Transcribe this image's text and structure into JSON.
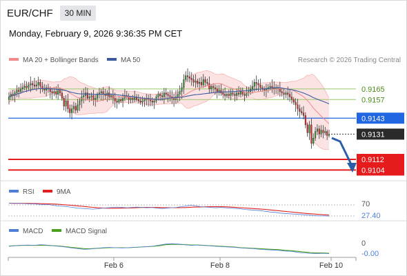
{
  "header": {
    "symbol": "EUR/CHF",
    "timeframe": "30 MIN"
  },
  "datetime": "Monday, February 9, 2026 9:36:35 PM CET",
  "legend": {
    "bollinger": "MA 20 + Bollinger Bands",
    "ma50": "MA 50",
    "credit": "Research © 2026 Trading Central"
  },
  "colors": {
    "up": "#2e9e3a",
    "down": "#d62c2c",
    "bollinger": "#f08a8a",
    "ma50": "#3b5b9c",
    "pivot": "#1f66e0",
    "resistance": "#9cc86a",
    "support": "#e61c1c",
    "last_price_box": "#2a2a2a",
    "forecast_arrow": "#2b5ea6",
    "rsi": "#4f7ed6",
    "rsi_ma": "#e01f1f",
    "macd": "#4f7ed6",
    "macd_signal": "#4aa01e"
  },
  "chart_data": [
    {
      "type": "candlestick",
      "name": "price",
      "y_range": [
        0.9098,
        0.9181
      ],
      "levels": [
        {
          "value": 0.9165,
          "label": "0.9165",
          "kind": "resistance"
        },
        {
          "value": 0.9157,
          "label": "0.9157",
          "kind": "resistance"
        },
        {
          "value": 0.9143,
          "label": "0.9143",
          "kind": "pivot"
        },
        {
          "value": 0.9131,
          "label": "0.9131",
          "kind": "last"
        },
        {
          "value": 0.9112,
          "label": "0.9112",
          "kind": "support"
        },
        {
          "value": 0.9104,
          "label": "0.9104",
          "kind": "support"
        }
      ],
      "close": [
        0.9159,
        0.9161,
        0.916,
        0.9162,
        0.9164,
        0.9163,
        0.9165,
        0.9166,
        0.9167,
        0.9166,
        0.9168,
        0.9169,
        0.9168,
        0.9167,
        0.9168,
        0.917,
        0.9167,
        0.9165,
        0.9164,
        0.9166,
        0.9165,
        0.9163,
        0.9162,
        0.9163,
        0.9161,
        0.9164,
        0.9162,
        0.9158,
        0.9152,
        0.9156,
        0.915,
        0.9147,
        0.915,
        0.9152,
        0.9149,
        0.9153,
        0.9156,
        0.9159,
        0.916,
        0.9162,
        0.9158,
        0.9159,
        0.916,
        0.9157,
        0.9158,
        0.9161,
        0.9162,
        0.9163,
        0.9161,
        0.916,
        0.9162,
        0.9159,
        0.916,
        0.9158,
        0.9156,
        0.9155,
        0.9157,
        0.9156,
        0.9158,
        0.916,
        0.9159,
        0.9157,
        0.9158,
        0.9157,
        0.9159,
        0.9157,
        0.9156,
        0.9155,
        0.9156,
        0.9157,
        0.9158,
        0.9157,
        0.9156,
        0.9155,
        0.9156,
        0.9159,
        0.9161,
        0.916,
        0.9159,
        0.9162,
        0.9161,
        0.916,
        0.9159,
        0.9158,
        0.9157,
        0.9159,
        0.9161,
        0.9163,
        0.9166,
        0.9172,
        0.9175,
        0.9174,
        0.9173,
        0.9172,
        0.917,
        0.9171,
        0.9169,
        0.917,
        0.9168,
        0.9172,
        0.917,
        0.9169,
        0.9165,
        0.9167,
        0.9166,
        0.9165,
        0.9163,
        0.9164,
        0.9162,
        0.9161,
        0.916,
        0.9161,
        0.916,
        0.9162,
        0.9161,
        0.916,
        0.9162,
        0.9161,
        0.9163,
        0.9161,
        0.916,
        0.9162,
        0.9163,
        0.9165,
        0.9167,
        0.917,
        0.9169,
        0.9168,
        0.9166,
        0.9165,
        0.9164,
        0.9165,
        0.9166,
        0.9167,
        0.9166,
        0.9165,
        0.9166,
        0.9165,
        0.9163,
        0.9162,
        0.9161,
        0.9162,
        0.9161,
        0.9159,
        0.9157,
        0.9155,
        0.9153,
        0.915,
        0.9148,
        0.9147,
        0.9145,
        0.9138,
        0.9132,
        0.9138,
        0.9124,
        0.9128,
        0.9133,
        0.9135,
        0.9131,
        0.9134,
        0.9132,
        0.9133,
        0.913,
        0.9131
      ]
    },
    {
      "type": "line",
      "name": "RSI",
      "y_tick_labels": [
        "70",
        "27.40"
      ],
      "values": [
        64,
        63,
        64,
        63,
        62,
        62,
        61,
        60,
        60,
        58,
        56,
        55,
        54,
        52,
        50,
        49,
        48,
        47,
        48,
        50,
        51,
        52,
        53,
        52,
        51,
        52,
        53,
        52,
        51,
        52,
        50,
        49,
        50,
        51,
        52,
        54,
        56,
        58,
        56,
        54,
        53,
        52,
        51,
        52,
        51,
        50,
        49,
        48,
        46,
        45,
        44,
        43,
        41,
        39,
        38,
        36,
        35,
        34,
        33,
        32,
        31,
        30,
        29,
        28,
        28,
        27.4
      ]
    },
    {
      "type": "line",
      "name": "MACD",
      "y_tick_labels": [
        "0",
        "-0.00"
      ],
      "macd": [
        0.2,
        0.4,
        0.5,
        0.6,
        0.5,
        0.7,
        0.6,
        0.4,
        0.2,
        0.0,
        -0.3,
        -0.5,
        -0.7,
        -0.6,
        -0.4,
        -0.2,
        -0.1,
        -0.2,
        -0.3,
        -0.2,
        -0.1,
        0.0,
        0.1,
        0.3,
        0.6,
        0.9,
        1.0,
        0.9,
        0.7,
        0.5,
        0.6,
        0.5,
        0.4,
        0.2,
        0.1,
        0.0,
        -0.1,
        -0.3,
        -0.4,
        -0.5,
        -0.7,
        -0.8,
        -0.9,
        -1.0,
        -1.2,
        -1.3,
        -1.6,
        -1.8,
        -1.9,
        -2.0,
        -1.9,
        -2.0
      ],
      "signal": [
        0.3,
        0.4,
        0.5,
        0.5,
        0.5,
        0.5,
        0.5,
        0.4,
        0.3,
        0.1,
        -0.1,
        -0.3,
        -0.5,
        -0.5,
        -0.4,
        -0.3,
        -0.2,
        -0.2,
        -0.2,
        -0.2,
        -0.1,
        0.0,
        0.1,
        0.2,
        0.4,
        0.7,
        0.8,
        0.8,
        0.7,
        0.6,
        0.6,
        0.5,
        0.4,
        0.3,
        0.2,
        0.1,
        0.0,
        -0.2,
        -0.3,
        -0.4,
        -0.5,
        -0.6,
        -0.7,
        -0.8,
        -1.0,
        -1.1,
        -1.3,
        -1.5,
        -1.7,
        -1.8,
        -1.8,
        -1.9
      ]
    }
  ],
  "rsi_legend": {
    "rsi": "RSI",
    "ma": "9MA"
  },
  "macd_legend": {
    "macd": "MACD",
    "signal": "MACD Signal"
  },
  "x_axis": {
    "ticks": [
      "Feb 6",
      "Feb 8",
      "Feb 10"
    ]
  }
}
